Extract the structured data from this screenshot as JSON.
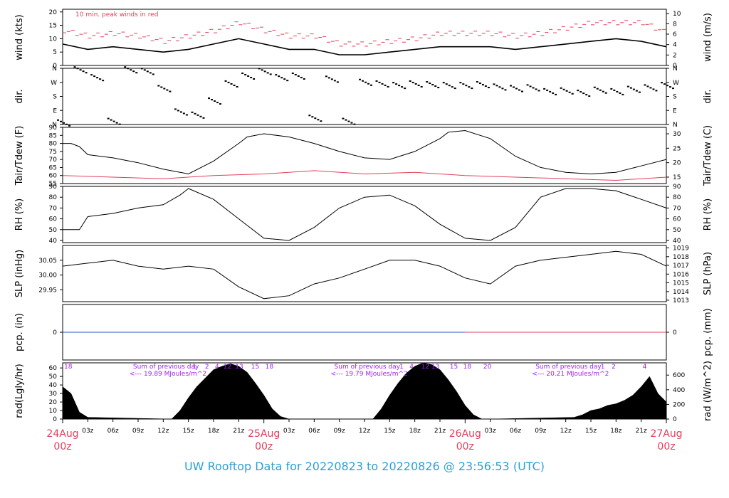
{
  "page": {
    "footer_title": "UW Rooftop Data for 20220823  to  20220826 @ 23:56:53  (UTC)",
    "footer_color": "#2aa0d8"
  },
  "colors": {
    "series_black": "#000000",
    "series_red": "#e0405a",
    "series_blue": "#3050c0",
    "annotation_purple": "#a020f0",
    "date_label": "#e0405a"
  },
  "chart_data": [
    {
      "id": "wind",
      "type": "line",
      "ylabel": "wind (kts)",
      "ylabel_right": "wind (m/s)",
      "ylim": [
        0,
        21
      ],
      "yticks": [
        0,
        5,
        10,
        15,
        20
      ],
      "yticks_right": [
        {
          "label": "0",
          "value": 0
        },
        {
          "label": "2",
          "value": 3.9
        },
        {
          "label": "4",
          "value": 7.8
        },
        {
          "label": "6",
          "value": 11.7
        },
        {
          "label": "8",
          "value": 15.6
        },
        {
          "label": "10",
          "value": 19.4
        }
      ],
      "annotation": "10 min. peak winds in red",
      "series": [
        {
          "name": "wind",
          "color": "black",
          "x": [
            0,
            3,
            6,
            9,
            12,
            15,
            18,
            21,
            24,
            27,
            30,
            33,
            36,
            39,
            42,
            45,
            48,
            51,
            54,
            57,
            60,
            63,
            66,
            69,
            72
          ],
          "y": [
            8,
            6,
            7,
            6,
            5,
            6,
            8,
            10,
            8,
            6,
            6,
            4,
            4,
            5,
            6,
            7,
            7,
            7,
            6,
            7,
            8,
            9,
            10,
            9,
            7
          ]
        },
        {
          "name": "10 min. peak winds",
          "color": "red",
          "x": [
            0,
            3,
            6,
            9,
            12,
            15,
            18,
            21,
            24,
            27,
            30,
            33,
            36,
            39,
            42,
            45,
            48,
            51,
            54,
            57,
            60,
            63,
            66,
            69,
            72
          ],
          "y": [
            13,
            11,
            12,
            11,
            9,
            11,
            13,
            16,
            13,
            11,
            11,
            8,
            8,
            9,
            10,
            12,
            12,
            12,
            11,
            12,
            14,
            16,
            16,
            16,
            12
          ]
        }
      ]
    },
    {
      "id": "dir",
      "type": "scatter",
      "ylabel": "dir.",
      "ylabel_right": "dir.",
      "ylim": [
        0,
        360
      ],
      "yticks": [
        {
          "label": "N",
          "value": 360
        },
        {
          "label": "W",
          "value": 270
        },
        {
          "label": "S",
          "value": 180
        },
        {
          "label": "E",
          "value": 90
        },
        {
          "label": "N",
          "value": 0
        }
      ],
      "series": [
        {
          "name": "direction",
          "x": [
            0,
            2,
            4,
            6,
            8,
            10,
            12,
            14,
            16,
            18,
            20,
            22,
            24,
            26,
            28,
            30,
            32,
            34,
            36,
            38,
            40,
            42,
            44,
            46,
            48,
            50,
            52,
            54,
            56,
            58,
            60,
            62,
            64,
            66,
            68,
            70,
            72
          ],
          "y": [
            10,
            350,
            300,
            20,
            350,
            340,
            230,
            80,
            60,
            150,
            260,
            310,
            340,
            300,
            310,
            40,
            290,
            20,
            270,
            260,
            250,
            260,
            255,
            250,
            250,
            255,
            240,
            230,
            235,
            210,
            215,
            200,
            220,
            210,
            225,
            235,
            250
          ]
        }
      ]
    },
    {
      "id": "temp",
      "type": "line",
      "ylabel": "Tair/Tdew (F)",
      "ylabel_right": "Tair/Tdew (C)",
      "ylim": [
        55,
        90
      ],
      "yticks": [
        55,
        60,
        65,
        70,
        75,
        80,
        85,
        90
      ],
      "yticks_right": [
        {
          "label": "15",
          "value": 59
        },
        {
          "label": "20",
          "value": 68
        },
        {
          "label": "25",
          "value": 77
        },
        {
          "label": "30",
          "value": 86
        }
      ],
      "series": [
        {
          "name": "Tair",
          "color": "black",
          "x": [
            0,
            1,
            2,
            3,
            6,
            9,
            12,
            14,
            15,
            18,
            21,
            22,
            24,
            27,
            30,
            33,
            36,
            39,
            42,
            45,
            46,
            48,
            51,
            54,
            57,
            60,
            63,
            66,
            69,
            72
          ],
          "y": [
            80,
            80,
            78,
            73,
            71,
            68,
            64,
            62,
            61,
            69,
            80,
            84,
            86,
            84,
            80,
            75,
            71,
            70,
            75,
            83,
            87,
            88,
            83,
            72,
            65,
            62,
            61,
            62,
            66,
            70
          ]
        },
        {
          "name": "Tdew",
          "color": "red",
          "x": [
            0,
            6,
            12,
            18,
            24,
            30,
            36,
            42,
            48,
            54,
            60,
            66,
            72
          ],
          "y": [
            60,
            59,
            58,
            60,
            61,
            63,
            61,
            62,
            60,
            59,
            58,
            57,
            59
          ]
        }
      ]
    },
    {
      "id": "rh",
      "type": "line",
      "ylabel": "RH (%)",
      "ylabel_right": "RH (%)",
      "ylim": [
        38,
        90
      ],
      "yticks": [
        40,
        50,
        60,
        70,
        80,
        90
      ],
      "series": [
        {
          "name": "RH",
          "color": "black",
          "x": [
            0,
            2,
            3,
            6,
            9,
            12,
            14,
            15,
            18,
            21,
            24,
            27,
            30,
            33,
            36,
            39,
            42,
            45,
            48,
            51,
            54,
            57,
            60,
            63,
            66,
            69,
            72
          ],
          "y": [
            50,
            50,
            62,
            65,
            70,
            73,
            82,
            88,
            78,
            60,
            42,
            40,
            52,
            70,
            80,
            82,
            72,
            55,
            42,
            40,
            52,
            80,
            88,
            88,
            86,
            78,
            70
          ]
        }
      ]
    },
    {
      "id": "slp",
      "type": "line",
      "ylabel": "SLP (inHg)",
      "ylabel_right": "SLP (hPa)",
      "ylim": [
        29.91,
        30.1
      ],
      "yticks": [
        {
          "label": "29.95",
          "value": 29.95
        },
        {
          "label": "30.00",
          "value": 30.0
        },
        {
          "label": "30.05",
          "value": 30.05
        }
      ],
      "yticks_right": [
        {
          "label": "1013",
          "value": 29.915
        },
        {
          "label": "1014",
          "value": 29.944
        },
        {
          "label": "1015",
          "value": 29.974
        },
        {
          "label": "1016",
          "value": 30.003
        },
        {
          "label": "1017",
          "value": 30.033
        },
        {
          "label": "1018",
          "value": 30.062
        },
        {
          "label": "1019",
          "value": 30.092
        }
      ],
      "series": [
        {
          "name": "SLP",
          "color": "black",
          "x": [
            0,
            3,
            6,
            9,
            12,
            15,
            18,
            21,
            24,
            27,
            30,
            33,
            36,
            39,
            42,
            45,
            48,
            51,
            54,
            57,
            60,
            63,
            66,
            69,
            72
          ],
          "y": [
            30.03,
            30.04,
            30.05,
            30.03,
            30.02,
            30.03,
            30.02,
            29.96,
            29.92,
            29.93,
            29.97,
            29.99,
            30.02,
            30.05,
            30.05,
            30.03,
            29.99,
            29.97,
            30.03,
            30.05,
            30.06,
            30.07,
            30.08,
            30.07,
            30.03
          ]
        }
      ]
    },
    {
      "id": "pcp",
      "type": "line",
      "ylabel": "pcp. (in)",
      "ylabel_right": "pcp. (mm)",
      "ylim": [
        -1,
        1
      ],
      "yticks": [
        0
      ],
      "yticks_right": [
        {
          "label": "0",
          "value": 0
        }
      ],
      "series": [
        {
          "name": "pcp",
          "color": "blue",
          "x": [
            0,
            48
          ],
          "y": [
            0,
            0
          ]
        },
        {
          "name": "pcp recent",
          "color": "red",
          "x": [
            48,
            72
          ],
          "y": [
            0,
            0
          ]
        }
      ]
    },
    {
      "id": "rad",
      "type": "area",
      "ylabel": "rad(Lgly/hr)",
      "ylabel_right": "rad (W/m^2)",
      "ylim": [
        0,
        66
      ],
      "yticks": [
        0,
        10,
        20,
        30,
        40,
        50,
        60
      ],
      "yticks_right": [
        {
          "label": "0",
          "value": 0
        },
        {
          "label": "200",
          "value": 17.2
        },
        {
          "label": "400",
          "value": 34.4
        },
        {
          "label": "600",
          "value": 51.6
        }
      ],
      "annotations": [
        {
          "text": "Sum of previous day",
          "line2": "<--- 19.89 MJoules/m^2",
          "x": 5
        },
        {
          "text": "Sum of previous day",
          "line2": "<--- 19.79 MJoules/m^2",
          "x": 29
        },
        {
          "text": "Sum of previous day",
          "line2": "<--- 20.21 MJoules/m^2",
          "x": 53
        }
      ],
      "hour_marks": [
        {
          "label": "18",
          "x": 0
        },
        {
          "label": "1",
          "x": 15.3
        },
        {
          "label": "2",
          "x": 16.8
        },
        {
          "label": "4",
          "x": 18
        },
        {
          "label": "12",
          "x": 19
        },
        {
          "label": "13",
          "x": 20.4
        },
        {
          "label": "15",
          "x": 22.3
        },
        {
          "label": "18",
          "x": 24
        },
        {
          "label": "1",
          "x": 40
        },
        {
          "label": "4",
          "x": 41.2
        },
        {
          "label": "12",
          "x": 42.6
        },
        {
          "label": "13",
          "x": 43.8
        },
        {
          "label": "15",
          "x": 46
        },
        {
          "label": "18",
          "x": 47.6
        },
        {
          "label": "20",
          "x": 50
        },
        {
          "label": "1",
          "x": 64
        },
        {
          "label": "2",
          "x": 65.3
        },
        {
          "label": "4",
          "x": 69
        }
      ],
      "series": [
        {
          "name": "radiation",
          "color": "black",
          "x": [
            0,
            1,
            2,
            3,
            13,
            14,
            15,
            16,
            17,
            18,
            19,
            20,
            21,
            22,
            23,
            24,
            25,
            26,
            27,
            37,
            38,
            39,
            40,
            41,
            42,
            43,
            44,
            45,
            46,
            47,
            48,
            49,
            50,
            51,
            61,
            62,
            63,
            64,
            65,
            66,
            67,
            68,
            69,
            70,
            71,
            72
          ],
          "y": [
            38,
            30,
            8,
            2,
            0,
            10,
            25,
            38,
            48,
            58,
            62,
            65,
            62,
            55,
            42,
            28,
            12,
            3,
            0,
            0,
            12,
            28,
            42,
            54,
            62,
            66,
            64,
            58,
            46,
            32,
            16,
            5,
            0,
            0,
            2,
            5,
            10,
            12,
            16,
            18,
            22,
            28,
            38,
            50,
            30,
            20
          ]
        }
      ]
    }
  ],
  "x_axis": {
    "range_hours": [
      0,
      72
    ],
    "ticks": [
      {
        "label": "03z",
        "x": 3
      },
      {
        "label": "06z",
        "x": 6
      },
      {
        "label": "09z",
        "x": 9
      },
      {
        "label": "12z",
        "x": 12
      },
      {
        "label": "15z",
        "x": 15
      },
      {
        "label": "18z",
        "x": 18
      },
      {
        "label": "21z",
        "x": 21
      },
      {
        "label": "03z",
        "x": 27
      },
      {
        "label": "06z",
        "x": 30
      },
      {
        "label": "09z",
        "x": 33
      },
      {
        "label": "12z",
        "x": 36
      },
      {
        "label": "15z",
        "x": 39
      },
      {
        "label": "18z",
        "x": 42
      },
      {
        "label": "21z",
        "x": 45
      },
      {
        "label": "03z",
        "x": 51
      },
      {
        "label": "06z",
        "x": 54
      },
      {
        "label": "09z",
        "x": 57
      },
      {
        "label": "12z",
        "x": 60
      },
      {
        "label": "15z",
        "x": 63
      },
      {
        "label": "18z",
        "x": 66
      },
      {
        "label": "21z",
        "x": 69
      }
    ],
    "date_labels": [
      {
        "date": "24Aug",
        "time": "00z",
        "x": 0
      },
      {
        "date": "25Aug",
        "time": "00z",
        "x": 24
      },
      {
        "date": "26Aug",
        "time": "00z",
        "x": 48
      },
      {
        "date": "27Aug",
        "time": "00z",
        "x": 72
      }
    ]
  }
}
